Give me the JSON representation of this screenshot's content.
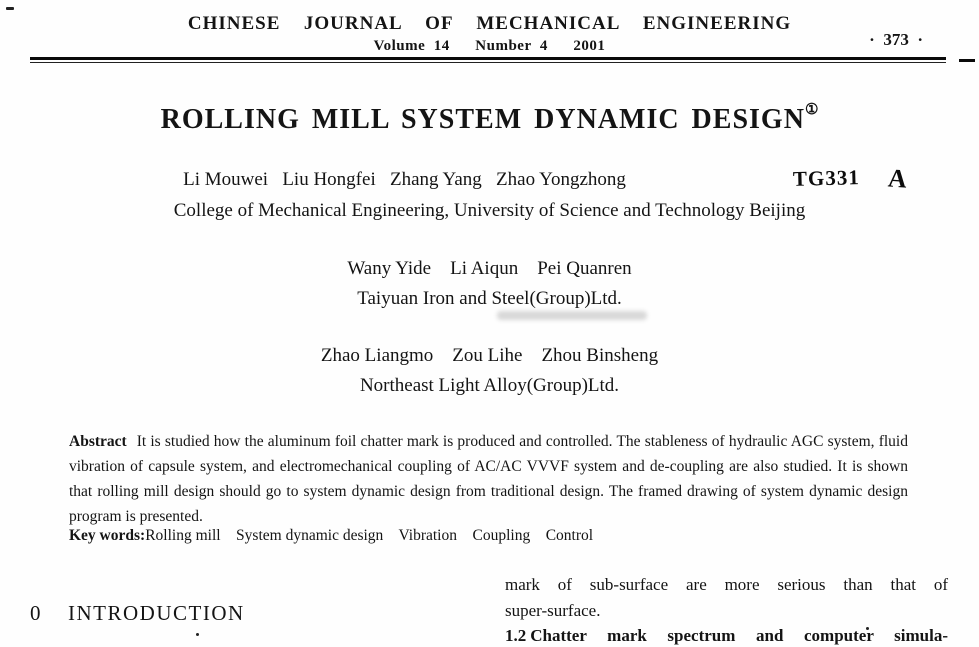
{
  "header": {
    "journal": "CHINESE  JOURNAL  OF  MECHANICAL  ENGINEERING",
    "volume_line": "Volume  14      Number  4      2001",
    "page_number": "·  373  ·"
  },
  "title": {
    "text": "ROLLING MILL SYSTEM DYNAMIC DESIGN",
    "footnote_mark": "①"
  },
  "handwritten_annotations": {
    "classification_code": "TG331",
    "grade_mark": "A"
  },
  "author_groups": [
    {
      "authors": "Li Mouwei   Liu Hongfei   Zhang Yang   Zhao Yongzhong",
      "affiliation": "College of Mechanical Engineering, University of Science and Technology Beijing"
    },
    {
      "authors": "Wany Yide    Li Aiqun    Pei Quanren",
      "affiliation": "Taiyuan Iron and Steel(Group)Ltd."
    },
    {
      "authors": "Zhao Liangmo    Zou Lihe    Zhou Binsheng",
      "affiliation": "Northeast Light Alloy(Group)Ltd."
    }
  ],
  "abstract": {
    "label": "Abstract",
    "text": "It is studied how the aluminum foil chatter mark is produced and controlled. The stableness of hydraulic AGC system, fluid vibration of capsule system, and electromechanical coupling of AC/AC VVVF system and de-coupling are also studied. It is shown that rolling mill design should go to system dynamic design from traditional design. The framed drawing of system dynamic design program is presented.",
    "keywords_label": "Key words:",
    "keywords": "Rolling mill    System dynamic design    Vibration    Coupling    Control"
  },
  "body": {
    "left_column": {
      "section_number": "0",
      "section_title": "INTRODUCTION"
    },
    "right_column": {
      "lines": [
        "mark of sub-surface are more serious than that of",
        "super-surface."
      ],
      "subsection_number": "1.2",
      "subsection_title": "Chatter mark spectrum and computer simula-"
    }
  }
}
